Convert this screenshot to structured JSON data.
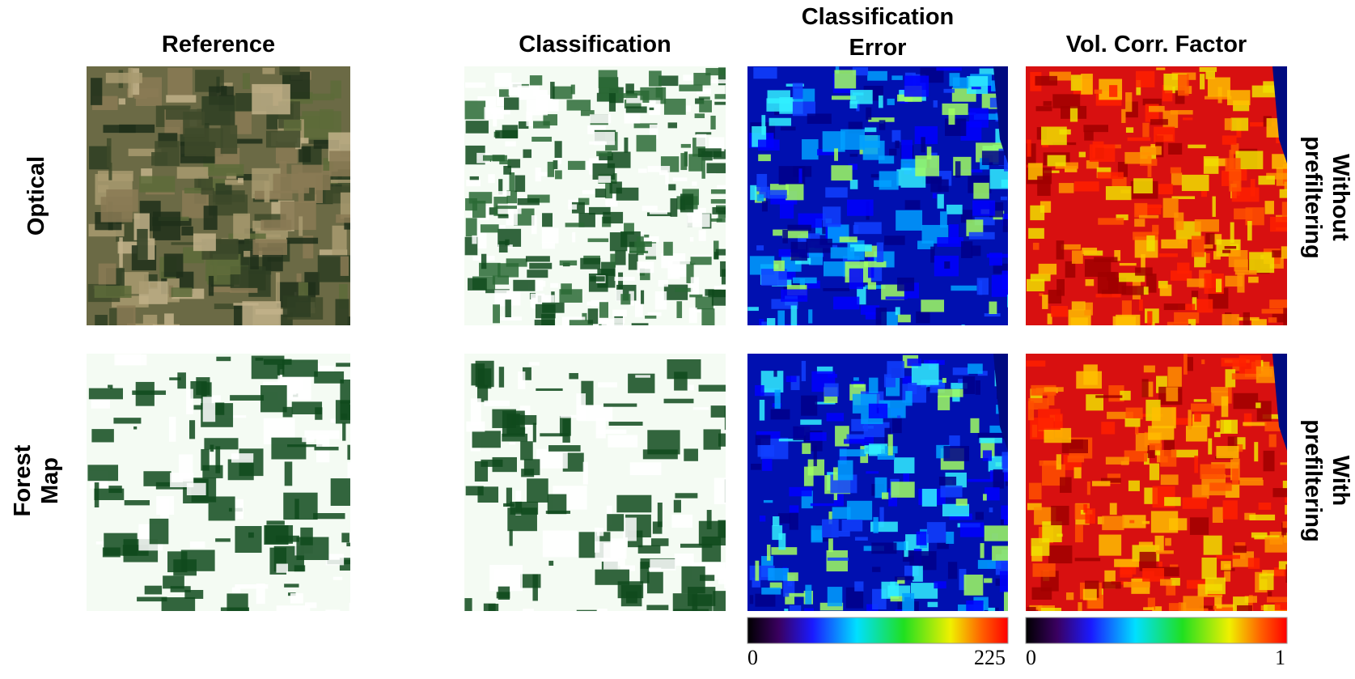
{
  "columns": [
    "Reference",
    "Classification",
    "Classification Error",
    "Vol. Corr. Factor"
  ],
  "rows": [
    "Optical",
    "Forest Map"
  ],
  "row_notes": [
    "Without prefiltering",
    "With prefiltering"
  ],
  "colorbars": [
    {
      "min": 0,
      "max": 225
    },
    {
      "min": 0,
      "max": 1
    }
  ]
}
